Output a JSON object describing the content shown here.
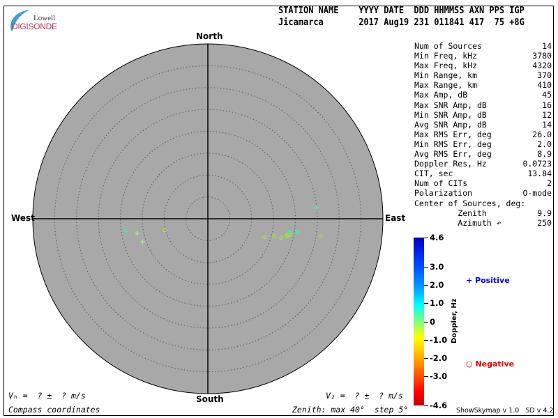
{
  "logo": {
    "line1": "Lowell",
    "line2": "DIGISONDE"
  },
  "header": {
    "labels": "STATION NAME    YYYY DATE  DDD HHMMSS AXN PPS IGP",
    "values": "Jicamarca       2017 Aug19 231 011841 417  75 +8G"
  },
  "compass": {
    "north": "North",
    "south": "South",
    "east": "East",
    "west": "West"
  },
  "stats": [
    {
      "label": "Num of Sources",
      "value": "14"
    },
    {
      "label": "Min Freq, kHz",
      "value": "3780"
    },
    {
      "label": "Max Freq, kHz",
      "value": "4320"
    },
    {
      "label": "Min Range, km",
      "value": "370"
    },
    {
      "label": "Max Range, km",
      "value": "410"
    },
    {
      "label": "Max Amp, dB",
      "value": "45"
    },
    {
      "label": "Max SNR Amp, dB",
      "value": "16"
    },
    {
      "label": "Min SNR Amp, dB",
      "value": "12"
    },
    {
      "label": "Avg SNR Amp, dB",
      "value": "14"
    },
    {
      "label": "Max RMS Err, deg",
      "value": "26.0"
    },
    {
      "label": "Min RMS Err, deg",
      "value": "2.0"
    },
    {
      "label": "Avg RMS Err, deg",
      "value": "8.9"
    },
    {
      "label": "Doppler Res, Hz",
      "value": "0.0723"
    },
    {
      "label": "CIT, sec",
      "value": "13.84"
    },
    {
      "label": "Num of CITs",
      "value": "2"
    },
    {
      "label": "Polarization",
      "value": "O-mode"
    },
    {
      "label": "Center of Sources, deg:",
      "value": ""
    },
    {
      "label": "         Zenith",
      "value": "9.9"
    },
    {
      "label": "         Azimuth ↶",
      "value": "250"
    }
  ],
  "colorbar": {
    "title": "Doppler, Hz",
    "ticks": [
      "4.6",
      "3.0",
      "2.0",
      "1.0",
      "0",
      "-1.0",
      "-2.0",
      "-3.0",
      "-4.6"
    ],
    "range": [
      -4.6,
      4.6
    ]
  },
  "legend": {
    "positive": "Positive",
    "negative": "Negative",
    "positive_color": "#0000e0",
    "negative_color": "#e00000"
  },
  "footer": {
    "vh": "Vₕ =  ? ±  ? m/s",
    "vz": "V₂ =  ? ±  ? m/s",
    "coords": "Compass coordinates",
    "zenith": "Zenith: max 40°  step 5°",
    "version": "ShowSkymap v 1.0   SD v 4.2"
  },
  "chart_data": {
    "type": "scatter",
    "projection": "polar skymap, zenith angle radial, azimuth clockwise from North",
    "zenith_max": 40,
    "zenith_step": 5,
    "sources": [
      {
        "zenith": 19.1,
        "azimuth": 261.3,
        "sign": "positive",
        "doppler": 0.9
      },
      {
        "zenith": 16.5,
        "azimuth": 258.3,
        "sign": "positive",
        "doppler": 0.4
      },
      {
        "zenith": 15.8,
        "azimuth": 250.5,
        "sign": "positive",
        "doppler": 0.4
      },
      {
        "zenith": 24.9,
        "azimuth": 84.1,
        "sign": "positive",
        "doppler": 1.0
      },
      {
        "zenith": 19.0,
        "azimuth": 99.2,
        "sign": "positive",
        "doppler": 1.0
      },
      {
        "zenith": 20.7,
        "azimuth": 98.4,
        "sign": "positive",
        "doppler": 1.0
      },
      {
        "zenith": 10.2,
        "azimuth": 255.5,
        "sign": "negative",
        "doppler": -0.4
      },
      {
        "zenith": 13.5,
        "azimuth": 108.0,
        "sign": "negative",
        "doppler": -0.4
      },
      {
        "zenith": 15.7,
        "azimuth": 104.7,
        "sign": "negative",
        "doppler": -0.4
      },
      {
        "zenith": 17.3,
        "azimuth": 104.4,
        "sign": "negative",
        "doppler": -0.4
      },
      {
        "zenith": 18.3,
        "azimuth": 102.1,
        "sign": "negative",
        "doppler": -0.4
      },
      {
        "zenith": 18.6,
        "azimuth": 101.9,
        "sign": "negative",
        "doppler": -0.4
      },
      {
        "zenith": 19.2,
        "azimuth": 101.0,
        "sign": "negative",
        "doppler": -0.4
      },
      {
        "zenith": 26.1,
        "azimuth": 98.8,
        "sign": "negative",
        "doppler": -0.4
      }
    ]
  }
}
